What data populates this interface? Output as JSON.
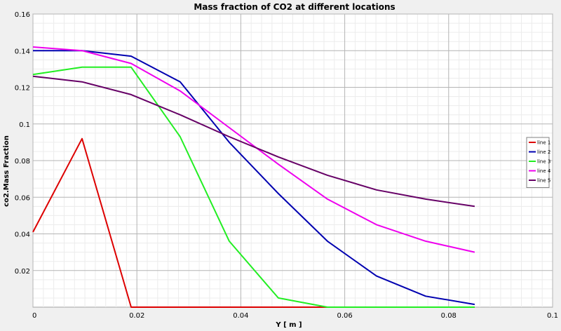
{
  "chart_data": {
    "type": "line",
    "title": "Mass fraction of CO2 at different locations",
    "xlabel": "Y [ m ]",
    "ylabel": "co2.Mass Fraction",
    "xlim": [
      0,
      0.1
    ],
    "ylim": [
      0,
      0.16
    ],
    "xticks": [
      0,
      0.02,
      0.04,
      0.06,
      0.08,
      0.1
    ],
    "xtick_labels": [
      "0",
      "0.02",
      "0.04",
      "0.06",
      "0.08",
      "0.1"
    ],
    "yticks": [
      0.02,
      0.04,
      0.06,
      0.08,
      0.1,
      0.12,
      0.14,
      0.16
    ],
    "ytick_labels": [
      "0.02",
      "0.04",
      "0.06",
      "0.08",
      "0.1",
      "0.12",
      "0.14",
      "0.16"
    ],
    "grid": true,
    "legend_position": "right",
    "x": [
      0,
      0.00944,
      0.01889,
      0.02833,
      0.03778,
      0.04722,
      0.05667,
      0.06611,
      0.07556,
      0.085
    ],
    "series": [
      {
        "name": "line 1",
        "color": "#dd0000",
        "values": [
          0.041,
          0.092,
          0.0,
          0.0,
          0.0,
          0.0,
          0.0,
          0.0,
          0.0,
          0.0
        ]
      },
      {
        "name": "line 2",
        "color": "#0000b0",
        "values": [
          0.14,
          0.14,
          0.137,
          0.123,
          0.09,
          0.062,
          0.036,
          0.017,
          0.006,
          0.0015
        ]
      },
      {
        "name": "line 3",
        "color": "#22ee22",
        "values": [
          0.127,
          0.131,
          0.131,
          0.093,
          0.036,
          0.005,
          0.0,
          0.0,
          0.0,
          0.0
        ]
      },
      {
        "name": "line 4",
        "color": "#ee00ee",
        "values": [
          0.142,
          0.14,
          0.133,
          0.118,
          0.098,
          0.078,
          0.059,
          0.045,
          0.036,
          0.03
        ]
      },
      {
        "name": "line 5",
        "color": "#660066",
        "values": [
          0.126,
          0.123,
          0.116,
          0.105,
          0.093,
          0.082,
          0.072,
          0.064,
          0.059,
          0.055
        ]
      }
    ]
  }
}
